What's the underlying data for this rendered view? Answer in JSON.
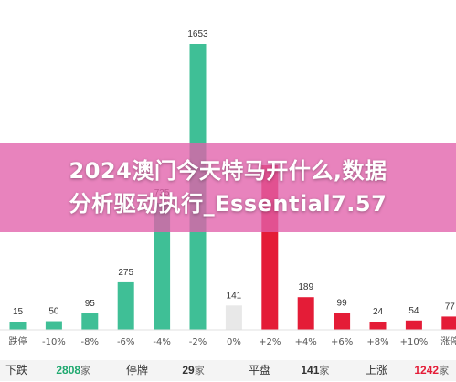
{
  "chart_data": {
    "type": "bar",
    "categories": [
      "跌停",
      "-10%",
      "-8%",
      "-6%",
      "-4%",
      "-2%",
      "0%",
      "+2%",
      "+4%",
      "+6%",
      "+8%",
      "+10%",
      "涨停"
    ],
    "values": [
      15,
      50,
      95,
      275,
      735,
      1653,
      141,
      null,
      189,
      99,
      24,
      54,
      77
    ],
    "colors": {
      "down": "#3fbf96",
      "flat": "#e8e8e8",
      "up": "#e41c37"
    },
    "bar_colors": [
      "down",
      "down",
      "down",
      "down",
      "down",
      "down",
      "flat",
      "up",
      "up",
      "up",
      "up",
      "up",
      "up"
    ],
    "grid": false
  },
  "banner": {
    "line1": "2024澳门今天特马开什么,数据",
    "line2": "分析驱动执行_Essential7.57"
  },
  "summary": [
    {
      "label": "下跌",
      "count": "2808",
      "unit": "家",
      "color": "#1fa86f"
    },
    {
      "label": "停牌",
      "count": "29",
      "unit": "家",
      "color": "#333333"
    },
    {
      "label": "平盘",
      "count": "141",
      "unit": "家",
      "color": "#333333"
    },
    {
      "label": "上涨",
      "count": "1242",
      "unit": "家",
      "color": "#e41c37"
    }
  ]
}
